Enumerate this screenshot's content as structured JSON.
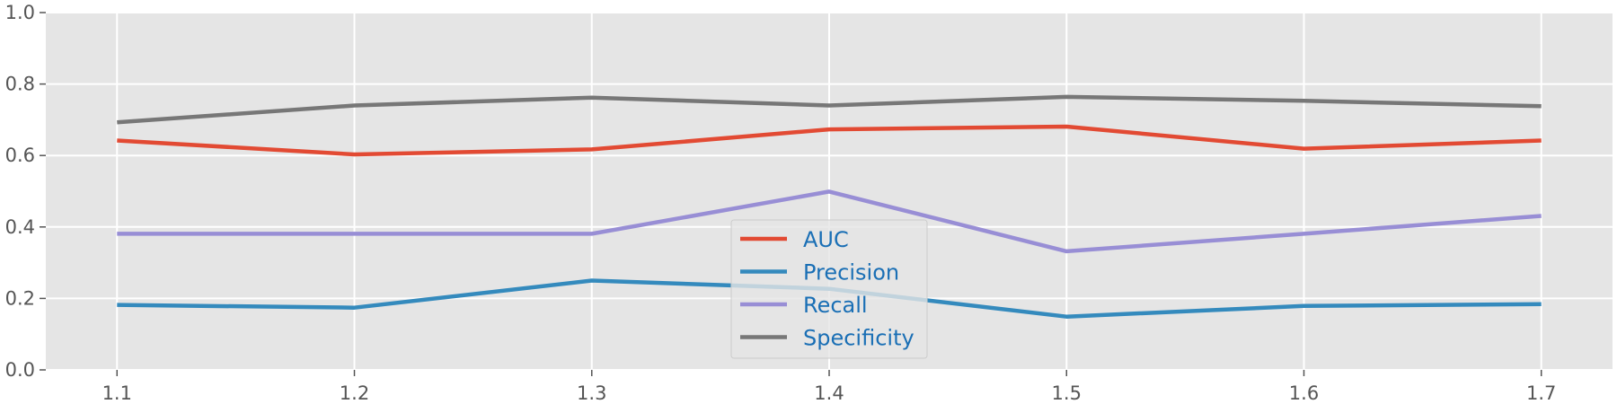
{
  "chart_data": {
    "type": "line",
    "x": [
      1.1,
      1.2,
      1.3,
      1.4,
      1.5,
      1.6,
      1.7
    ],
    "xticks": [
      "1.1",
      "1.2",
      "1.3",
      "1.4",
      "1.5",
      "1.6",
      "1.7"
    ],
    "xlim": [
      1.07,
      1.73
    ],
    "ylim": [
      0.0,
      1.0
    ],
    "yticks": [
      "0.0",
      "0.2",
      "0.4",
      "0.6",
      "0.8",
      "1.0"
    ],
    "grid": true,
    "legend": "lower center",
    "series": [
      {
        "name": "AUC",
        "color": "#E24A33",
        "values": [
          0.642,
          0.603,
          0.617,
          0.673,
          0.681,
          0.619,
          0.642
        ]
      },
      {
        "name": "Precision",
        "color": "#348ABD",
        "values": [
          0.182,
          0.174,
          0.25,
          0.227,
          0.149,
          0.179,
          0.184
        ]
      },
      {
        "name": "Recall",
        "color": "#988ED5",
        "values": [
          0.381,
          0.381,
          0.381,
          0.499,
          0.332,
          0.381,
          0.431
        ]
      },
      {
        "name": "Specificity",
        "color": "#777777",
        "values": [
          0.693,
          0.74,
          0.762,
          0.74,
          0.764,
          0.753,
          0.738
        ]
      }
    ]
  }
}
